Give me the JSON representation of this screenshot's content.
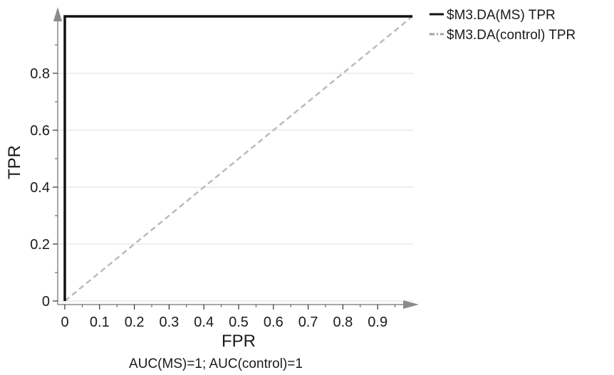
{
  "chart_data": {
    "type": "line",
    "xlabel": "FPR",
    "ylabel": "TPR",
    "xlim": [
      0,
      1
    ],
    "ylim": [
      0,
      1
    ],
    "x_ticks": [
      "0",
      "0.1",
      "0.2",
      "0.3",
      "0.4",
      "0.5",
      "0.6",
      "0.7",
      "0.8",
      "0.9"
    ],
    "y_ticks": [
      "0",
      "0.2",
      "0.4",
      "0.6",
      "0.8"
    ],
    "grid": "horizontal",
    "legend_position": "top-right",
    "annotation": "AUC(MS)=1; AUC(control)=1",
    "series": [
      {
        "name": "$M3.DA(MS) TPR",
        "style": "solid",
        "color": "#111111",
        "x": [
          0,
          0,
          1
        ],
        "y": [
          0,
          1,
          1
        ]
      },
      {
        "name": "$M3.DA(control) TPR",
        "style": "dash-dot",
        "color": "#a0a0a0",
        "x": [
          0,
          0,
          1
        ],
        "y": [
          0,
          1,
          1
        ]
      }
    ],
    "reference_line": {
      "style": "dashed",
      "color": "#bbbbbb",
      "x": [
        0,
        1
      ],
      "y": [
        0,
        1
      ]
    }
  }
}
